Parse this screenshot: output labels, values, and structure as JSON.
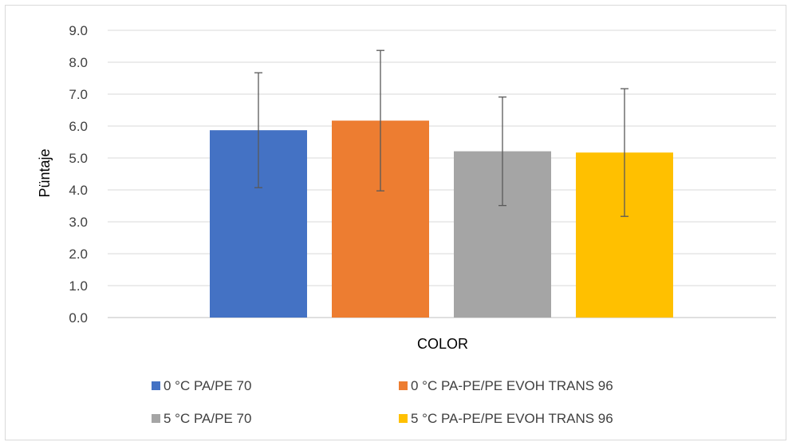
{
  "chart_data": {
    "type": "bar",
    "title": "",
    "xlabel": "COLOR",
    "ylabel": "Püntaje",
    "ylim": [
      0,
      9
    ],
    "yticks": [
      0,
      1,
      2,
      3,
      4,
      5,
      6,
      7,
      8,
      9
    ],
    "ytick_labels": [
      "0.0",
      "1.0",
      "2.0",
      "3.0",
      "4.0",
      "5.0",
      "6.0",
      "7.0",
      "8.0",
      "9.0"
    ],
    "grid": true,
    "legend_position": "bottom",
    "series": [
      {
        "name": "0 °C PA/PE 70",
        "value": 5.87,
        "error": 1.8,
        "color": "#4472C4"
      },
      {
        "name": "0 °C PA-PE/PE EVOH TRANS 96",
        "value": 6.17,
        "error": 2.2,
        "color": "#ED7D31"
      },
      {
        "name": "5 °C PA/PE 70",
        "value": 5.21,
        "error": 1.7,
        "color": "#A5A5A5"
      },
      {
        "name": "5 °C PA-PE/PE EVOH TRANS 96",
        "value": 5.17,
        "error": 2.0,
        "color": "#FFC000"
      }
    ]
  }
}
